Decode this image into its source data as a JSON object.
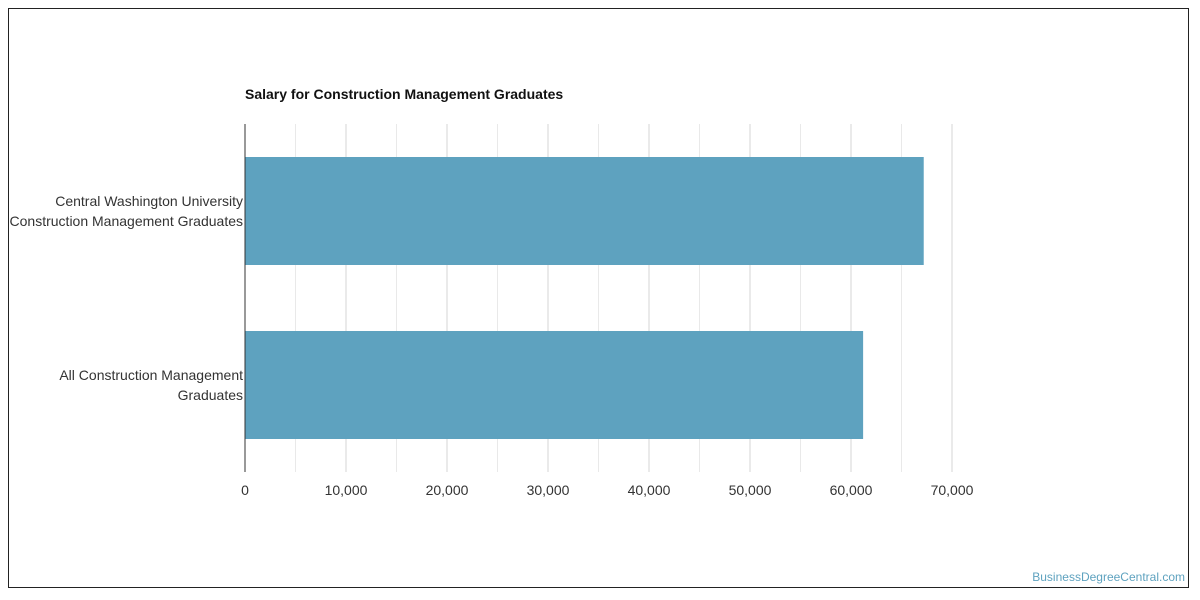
{
  "chart_data": {
    "type": "bar",
    "orientation": "horizontal",
    "title": "Salary for Construction Management Graduates",
    "categories": [
      "Central Washington University Construction Management Graduates",
      "All Construction Management Graduates"
    ],
    "values": [
      67200,
      61200
    ],
    "xlim": [
      0,
      70000
    ],
    "tick_labels": [
      "0",
      "10,000",
      "20,000",
      "30,000",
      "40,000",
      "50,000",
      "60,000",
      "70,000"
    ],
    "grid": true,
    "bar_color": "#5ea2bf"
  },
  "watermark": "BusinessDegreeCentral.com"
}
